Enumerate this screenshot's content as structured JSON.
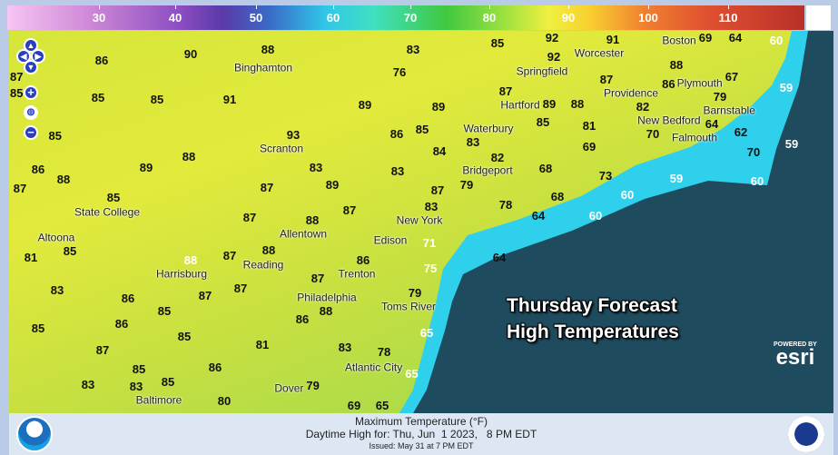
{
  "legend": {
    "labels": [
      "30",
      "40",
      "50",
      "60",
      "70",
      "80",
      "90",
      "100",
      "110"
    ],
    "unit": "°F"
  },
  "colors": {
    "ocean": "#1f4b5e",
    "coast": "#28c8e8",
    "land": "#d6e63a",
    "nav": "#2a3fc0"
  },
  "map_controls": [
    "pan-up",
    "pan-left",
    "pan-right",
    "pan-down",
    "zoom-in",
    "globe",
    "zoom-out"
  ],
  "cities": [
    "Binghamton",
    "Scranton",
    "State College",
    "Altoona",
    "Harrisburg",
    "Reading",
    "Allentown",
    "New York",
    "Edison",
    "Trenton",
    "Philadelphia",
    "Toms River",
    "Atlantic City",
    "Baltimore",
    "Dover",
    "Bridgeport",
    "Waterbury",
    "Hartford",
    "Springfield",
    "Worcester",
    "Boston",
    "Providence",
    "New Bedford",
    "Plymouth",
    "Barnstable",
    "Falmouth"
  ],
  "temperatures": [
    "86",
    "90",
    "88",
    "83",
    "85",
    "92",
    "91",
    "69",
    "64",
    "60",
    "87",
    "85",
    "85",
    "85",
    "91",
    "76",
    "92",
    "88",
    "67",
    "89",
    "89",
    "87",
    "89",
    "85",
    "88",
    "87",
    "86",
    "79",
    "82",
    "59",
    "85",
    "93",
    "86",
    "85",
    "84",
    "83",
    "81",
    "70",
    "64",
    "62",
    "59",
    "86",
    "88",
    "89",
    "88",
    "83",
    "83",
    "82",
    "68",
    "69",
    "73",
    "70",
    "59",
    "60",
    "87",
    "85",
    "87",
    "89",
    "87",
    "79",
    "68",
    "60",
    "78",
    "83",
    "87",
    "88",
    "87",
    "64",
    "60",
    "81",
    "85",
    "87",
    "88",
    "86",
    "71",
    "64",
    "88",
    "83",
    "87",
    "87",
    "87",
    "75",
    "86",
    "85",
    "86",
    "88",
    "86",
    "79",
    "85",
    "87",
    "85",
    "81",
    "83",
    "65",
    "85",
    "83",
    "86",
    "78",
    "65",
    "83",
    "85",
    "80",
    "79",
    "69",
    "65"
  ],
  "headline": [
    "Thursday Forecast",
    "High Temperatures"
  ],
  "attribution": {
    "powered_by": "POWERED BY",
    "brand": "esri"
  },
  "footer": {
    "title": "Maximum Temperature (°F)",
    "valid": "Daytime High for: Thu, Jun  1 2023,   8 PM EDT",
    "issued": "Issued: May 31 at 7 PM EDT"
  }
}
